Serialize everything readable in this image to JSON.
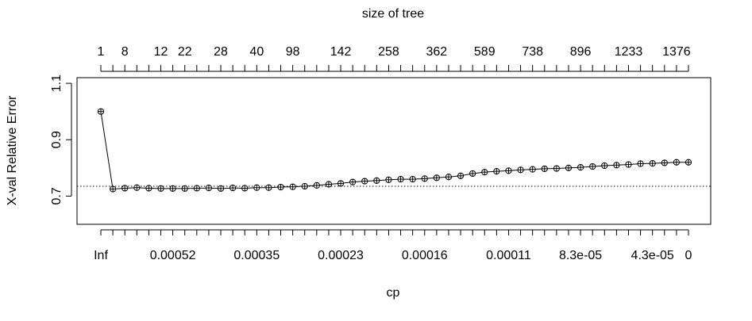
{
  "chart_data": {
    "type": "scatter",
    "title": "",
    "xlabel": "cp",
    "ylabel": "X-val Relative Error",
    "top_axis_label": "size of tree",
    "ylim": [
      0.6,
      1.12
    ],
    "y_ticks": [
      0.7,
      0.9,
      1.1
    ],
    "y_tick_labels": [
      "0.7",
      "0.9",
      "1.1"
    ],
    "reference_line": 0.735,
    "x_index_count": 50,
    "bottom_ticks": [
      {
        "index": 1,
        "label": "Inf"
      },
      {
        "index": 7,
        "label": "0.00052"
      },
      {
        "index": 14,
        "label": "0.00035"
      },
      {
        "index": 21,
        "label": "0.00023"
      },
      {
        "index": 28,
        "label": "0.00016"
      },
      {
        "index": 35,
        "label": "0.00011"
      },
      {
        "index": 41,
        "label": "8.3e-05"
      },
      {
        "index": 47,
        "label": "4.3e-05"
      },
      {
        "index": 50,
        "label": "0"
      }
    ],
    "top_ticks": [
      {
        "index": 1,
        "label": "1"
      },
      {
        "index": 3,
        "label": "8"
      },
      {
        "index": 6,
        "label": "12"
      },
      {
        "index": 8,
        "label": "22"
      },
      {
        "index": 11,
        "label": "28"
      },
      {
        "index": 14,
        "label": "40"
      },
      {
        "index": 17,
        "label": "98"
      },
      {
        "index": 21,
        "label": "142"
      },
      {
        "index": 25,
        "label": "258"
      },
      {
        "index": 29,
        "label": "362"
      },
      {
        "index": 33,
        "label": "589"
      },
      {
        "index": 37,
        "label": "738"
      },
      {
        "index": 41,
        "label": "896"
      },
      {
        "index": 45,
        "label": "1233"
      },
      {
        "index": 49,
        "label": "1376"
      }
    ],
    "series": [
      {
        "values": [
          1.0,
          0.725,
          0.728,
          0.73,
          0.728,
          0.727,
          0.727,
          0.727,
          0.728,
          0.729,
          0.727,
          0.729,
          0.728,
          0.73,
          0.73,
          0.732,
          0.733,
          0.735,
          0.738,
          0.742,
          0.745,
          0.75,
          0.753,
          0.755,
          0.758,
          0.76,
          0.76,
          0.762,
          0.765,
          0.768,
          0.772,
          0.78,
          0.785,
          0.788,
          0.79,
          0.793,
          0.795,
          0.797,
          0.798,
          0.8,
          0.802,
          0.805,
          0.808,
          0.81,
          0.812,
          0.815,
          0.816,
          0.818,
          0.82,
          0.82
        ]
      }
    ]
  }
}
